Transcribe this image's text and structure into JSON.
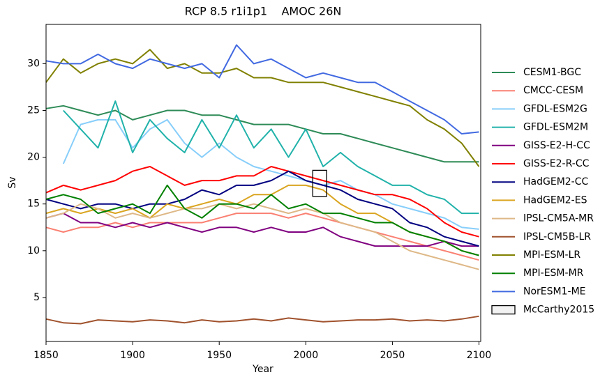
{
  "chart_data": {
    "type": "line",
    "title": "RCP 8.5 r1i1p1    AMOC 26N",
    "x_label": "Year",
    "y_label": "Sv",
    "x": [
      1850,
      1860,
      1870,
      1880,
      1890,
      1900,
      1910,
      1920,
      1930,
      1940,
      1950,
      1960,
      1970,
      1980,
      1990,
      2000,
      2010,
      2020,
      2030,
      2040,
      2050,
      2060,
      2070,
      2080,
      2090,
      2100
    ],
    "xlim": [
      1850,
      2101
    ],
    "xticks": [
      1850,
      1900,
      1950,
      2000,
      2050,
      2100
    ],
    "ylim": [
      0.3,
      34.2
    ],
    "yticks": [
      5,
      10,
      15,
      20,
      25,
      30
    ],
    "grid": false,
    "legend": "outside right",
    "series": [
      {
        "name": "CESM1-BGC",
        "color": "#2e8b57",
        "values": [
          25.2,
          25.5,
          25,
          24.5,
          25,
          24,
          24.5,
          25,
          25,
          24.5,
          24.5,
          24,
          23.5,
          23.5,
          23.5,
          23,
          22.5,
          22.5,
          22,
          21.5,
          21,
          20.5,
          20,
          19.5,
          19.5,
          19.5
        ]
      },
      {
        "name": "CMCC-CESM",
        "color": "#fa8072",
        "values": [
          12.5,
          12,
          12.5,
          12.5,
          13,
          12.5,
          13,
          13,
          13,
          13,
          13.5,
          14,
          14,
          14,
          13.5,
          14,
          13.5,
          13,
          12.5,
          12,
          11.5,
          11,
          10.5,
          10,
          9.5,
          9
        ]
      },
      {
        "name": "GFDL-ESM2G",
        "color": "#87cefa",
        "values": [
          null,
          19.3,
          23.5,
          24,
          24,
          21,
          23,
          24,
          21.5,
          20,
          21.5,
          20,
          19,
          18.5,
          18,
          17.5,
          17,
          17.5,
          16.5,
          16,
          15,
          14.5,
          14,
          13.5,
          12.5,
          12.3
        ]
      },
      {
        "name": "GFDL-ESM2M",
        "color": "#20b2aa",
        "values": [
          null,
          25,
          23,
          21,
          26,
          20.5,
          24,
          22,
          20.5,
          24,
          21,
          24.5,
          21,
          23,
          20,
          23,
          19,
          20.5,
          19,
          18,
          17,
          17,
          16,
          15.5,
          14,
          14
        ]
      },
      {
        "name": "GISS-E2-H-CC",
        "color": "#800080",
        "values": [
          13.5,
          14,
          13,
          13,
          12.5,
          13,
          12.5,
          13,
          12.5,
          12,
          12.5,
          12.5,
          12,
          12.5,
          12,
          12,
          12.5,
          11.5,
          11,
          10.5,
          10.5,
          10.5,
          10.5,
          11,
          10.5,
          10.5
        ]
      },
      {
        "name": "GISS-E2-R-CC",
        "color": "#ff0000",
        "values": [
          16.2,
          17,
          16.5,
          17,
          17.5,
          18.5,
          19,
          18,
          17,
          17.5,
          17.5,
          18,
          18,
          19,
          18.5,
          18,
          17.5,
          17,
          16.5,
          16,
          16,
          15.5,
          14.5,
          13,
          12,
          11.5
        ]
      },
      {
        "name": "HadGEM2-CC",
        "color": "#000080",
        "values": [
          15.5,
          15,
          14.5,
          15,
          15,
          14.5,
          15,
          15,
          15.5,
          16.5,
          16,
          17,
          17,
          17.5,
          18.5,
          17.5,
          17,
          16.5,
          15.5,
          15,
          14.5,
          13,
          12.5,
          11.5,
          11,
          10.5
        ]
      },
      {
        "name": "HadGEM2-ES",
        "color": "#daa520",
        "values": [
          14,
          14.5,
          14,
          14.5,
          14,
          14.5,
          13.5,
          15,
          14.5,
          15,
          15.5,
          15,
          16,
          16,
          17,
          17,
          16.5,
          15,
          14,
          14,
          13,
          12,
          11.5,
          11,
          10,
          9.5
        ]
      },
      {
        "name": "IPSL-CM5A-MR",
        "color": "#deb887",
        "values": [
          13.5,
          14,
          15,
          14.5,
          13.5,
          14,
          13.5,
          14,
          14.5,
          14.5,
          15,
          14.5,
          15,
          14.5,
          14,
          14.5,
          14,
          13,
          12.5,
          12,
          11,
          10,
          9.5,
          9,
          8.5,
          8
        ]
      },
      {
        "name": "IPSL-CM5B-LR",
        "color": "#a0522d",
        "values": [
          2.7,
          2.3,
          2.2,
          2.6,
          2.5,
          2.4,
          2.6,
          2.5,
          2.3,
          2.6,
          2.4,
          2.5,
          2.7,
          2.5,
          2.8,
          2.6,
          2.4,
          2.5,
          2.6,
          2.6,
          2.7,
          2.5,
          2.6,
          2.5,
          2.7,
          3.0
        ]
      },
      {
        "name": "MPI-ESM-LR",
        "color": "#808000",
        "values": [
          28,
          30.5,
          29,
          30,
          30.5,
          30,
          31.5,
          29.5,
          30,
          29,
          29,
          29.5,
          28.5,
          28.5,
          28,
          28,
          28,
          27.5,
          27,
          26.5,
          26,
          25.5,
          24,
          23,
          21.5,
          19
        ]
      },
      {
        "name": "MPI-ESM-MR",
        "color": "#008000",
        "values": [
          15.5,
          16,
          15.5,
          14,
          14.5,
          15,
          14,
          17,
          14.5,
          13.5,
          15,
          15,
          14.5,
          16,
          14.5,
          15,
          14,
          14,
          13.5,
          13,
          13,
          12,
          11.5,
          11,
          10,
          9.5
        ]
      },
      {
        "name": "NorESM1-ME",
        "color": "#4169e1",
        "values": [
          30.3,
          30,
          30,
          31,
          30,
          29.5,
          30.5,
          30,
          29.5,
          30,
          28.5,
          32,
          30,
          30.5,
          29.5,
          28.5,
          29,
          28.5,
          28,
          28,
          27,
          26,
          25,
          24,
          22.5,
          22.7
        ]
      }
    ],
    "observation": {
      "name": "McCarthy2015",
      "color": "#000000",
      "xlim": [
        2004,
        2012
      ],
      "ylim": [
        15.8,
        18.6
      ]
    }
  }
}
